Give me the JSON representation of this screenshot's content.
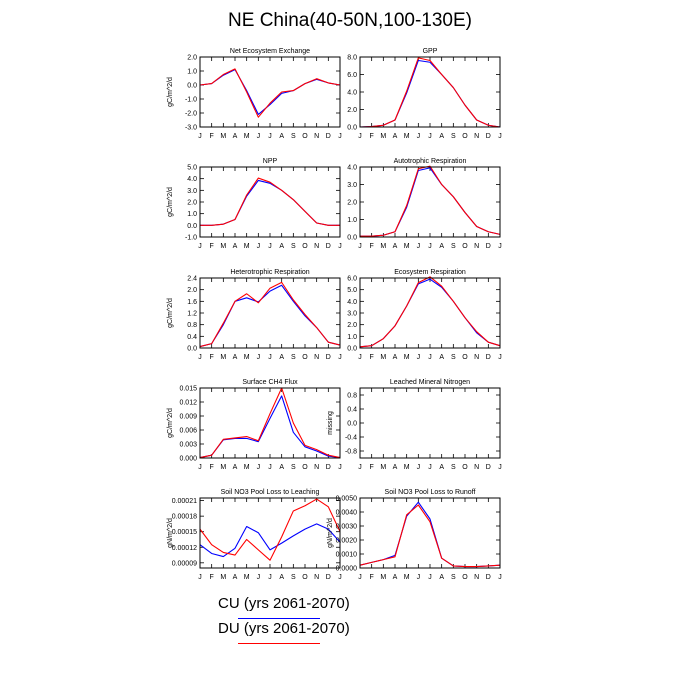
{
  "title": "NE China(40-50N,100-130E)",
  "months": [
    "J",
    "F",
    "M",
    "A",
    "M",
    "J",
    "J",
    "A",
    "S",
    "O",
    "N",
    "D",
    "J"
  ],
  "colors": {
    "CU": "#0000ff",
    "DU": "#ff0000"
  },
  "legend": [
    {
      "label": "CU (yrs 2061-2070)",
      "color": "#0000ff"
    },
    {
      "label": "DU (yrs 2061-2070)",
      "color": "#ff0000"
    }
  ],
  "chart_data": [
    {
      "type": "line",
      "title": "Net Ecosystem Exchange",
      "ylabel": "gC/m^2/d",
      "ylim": [
        -3.0,
        2.0
      ],
      "yticks": [
        "2.0",
        "1.0",
        "0.0",
        "-1.0",
        "-2.0",
        "-3.0"
      ],
      "ytick_values": [
        2.0,
        1.0,
        0.0,
        -1.0,
        -2.0,
        -3.0
      ],
      "series": [
        {
          "name": "CU (yrs 2061-2070)",
          "values": [
            0.0,
            0.1,
            0.7,
            1.1,
            -0.4,
            -2.1,
            -1.4,
            -0.6,
            -0.4,
            0.1,
            0.4,
            0.15,
            0.0
          ]
        },
        {
          "name": "DU (yrs 2061-2070)",
          "values": [
            0.0,
            0.1,
            0.75,
            1.15,
            -0.5,
            -2.3,
            -1.3,
            -0.5,
            -0.4,
            0.1,
            0.45,
            0.15,
            0.0
          ]
        }
      ]
    },
    {
      "type": "line",
      "title": "GPP",
      "ylabel": "",
      "ylim": [
        0.0,
        8.0
      ],
      "yticks": [
        "8.0",
        "6.0",
        "4.0",
        "2.0",
        "0.0"
      ],
      "ytick_values": [
        8.0,
        6.0,
        4.0,
        2.0,
        0.0
      ],
      "series": [
        {
          "name": "CU (yrs 2061-2070)",
          "values": [
            0.0,
            0.05,
            0.2,
            0.8,
            3.9,
            7.6,
            7.4,
            6.0,
            4.5,
            2.5,
            0.8,
            0.2,
            0.0
          ]
        },
        {
          "name": "DU (yrs 2061-2070)",
          "values": [
            0.0,
            0.05,
            0.2,
            0.8,
            4.1,
            7.9,
            7.6,
            6.0,
            4.5,
            2.5,
            0.8,
            0.2,
            0.0
          ]
        }
      ]
    },
    {
      "type": "line",
      "title": "NPP",
      "ylabel": "gC/m^2/d",
      "ylim": [
        -1.0,
        5.0
      ],
      "yticks": [
        "5.0",
        "4.0",
        "3.0",
        "2.0",
        "1.0",
        "0.0",
        "-1.0"
      ],
      "ytick_values": [
        5.0,
        4.0,
        3.0,
        2.0,
        1.0,
        0.0,
        -1.0
      ],
      "series": [
        {
          "name": "CU (yrs 2061-2070)",
          "values": [
            0.0,
            0.0,
            0.1,
            0.5,
            2.5,
            3.85,
            3.6,
            3.0,
            2.2,
            1.2,
            0.2,
            0.0,
            0.0
          ]
        },
        {
          "name": "DU (yrs 2061-2070)",
          "values": [
            0.0,
            0.0,
            0.1,
            0.5,
            2.6,
            4.05,
            3.7,
            3.0,
            2.2,
            1.2,
            0.2,
            0.0,
            0.0
          ]
        }
      ]
    },
    {
      "type": "line",
      "title": "Autotrophic Respiration",
      "ylabel": "",
      "ylim": [
        0.0,
        4.0
      ],
      "yticks": [
        "4.0",
        "3.0",
        "2.0",
        "1.0",
        "0.0"
      ],
      "ytick_values": [
        4.0,
        3.0,
        2.0,
        1.0,
        0.0
      ],
      "series": [
        {
          "name": "CU (yrs 2061-2070)",
          "values": [
            0.05,
            0.05,
            0.1,
            0.3,
            1.7,
            3.8,
            3.95,
            3.0,
            2.3,
            1.4,
            0.6,
            0.3,
            0.15
          ]
        },
        {
          "name": "DU (yrs 2061-2070)",
          "values": [
            0.05,
            0.05,
            0.1,
            0.3,
            1.8,
            3.9,
            4.05,
            3.0,
            2.3,
            1.4,
            0.6,
            0.3,
            0.15
          ]
        }
      ]
    },
    {
      "type": "line",
      "title": "Heterotrophic Respiration",
      "ylabel": "gC/m^2/d",
      "ylim": [
        0.0,
        2.4
      ],
      "yticks": [
        "2.4",
        "2.0",
        "1.6",
        "1.2",
        "0.8",
        "0.4",
        "0.0"
      ],
      "ytick_values": [
        2.4,
        2.0,
        1.6,
        1.2,
        0.8,
        0.4,
        0.0
      ],
      "series": [
        {
          "name": "CU (yrs 2061-2070)",
          "values": [
            0.05,
            0.15,
            0.8,
            1.6,
            1.72,
            1.58,
            1.95,
            2.15,
            1.6,
            1.1,
            0.7,
            0.2,
            0.1
          ]
        },
        {
          "name": "DU (yrs 2061-2070)",
          "values": [
            0.05,
            0.15,
            0.85,
            1.6,
            1.86,
            1.55,
            2.05,
            2.25,
            1.65,
            1.15,
            0.7,
            0.2,
            0.1
          ]
        }
      ]
    },
    {
      "type": "line",
      "title": "Ecosystem Respiration",
      "ylabel": "",
      "ylim": [
        0.0,
        6.0
      ],
      "yticks": [
        "6.0",
        "5.0",
        "4.0",
        "3.0",
        "2.0",
        "1.0",
        "0.0"
      ],
      "ytick_values": [
        6.0,
        5.0,
        4.0,
        3.0,
        2.0,
        1.0,
        0.0
      ],
      "series": [
        {
          "name": "CU (yrs 2061-2070)",
          "values": [
            0.1,
            0.2,
            0.8,
            1.9,
            3.6,
            5.5,
            5.9,
            5.2,
            4.0,
            2.6,
            1.3,
            0.5,
            0.2
          ]
        },
        {
          "name": "DU (yrs 2061-2070)",
          "values": [
            0.1,
            0.2,
            0.8,
            1.9,
            3.6,
            5.6,
            6.1,
            5.3,
            4.0,
            2.6,
            1.4,
            0.5,
            0.2
          ]
        }
      ]
    },
    {
      "type": "line",
      "title": "Surface CH4 Flux",
      "ylabel": "gC/m^2/d",
      "ylim": [
        0.0,
        0.015
      ],
      "yticks": [
        "0.015",
        "0.012",
        "0.009",
        "0.006",
        "0.003",
        "0.000"
      ],
      "ytick_values": [
        0.015,
        0.012,
        0.009,
        0.006,
        0.003,
        0.0
      ],
      "series": [
        {
          "name": "CU (yrs 2061-2070)",
          "values": [
            0.0001,
            0.0006,
            0.0039,
            0.0042,
            0.0042,
            0.0035,
            0.0085,
            0.0133,
            0.0055,
            0.0024,
            0.0015,
            0.0004,
            0.0001
          ]
        },
        {
          "name": "DU (yrs 2061-2070)",
          "values": [
            0.0001,
            0.0006,
            0.004,
            0.0043,
            0.0046,
            0.0037,
            0.0095,
            0.015,
            0.0075,
            0.0027,
            0.0018,
            0.0006,
            0.0001
          ]
        }
      ]
    },
    {
      "type": "line",
      "title": "Leached Mineral Nitrogen",
      "ylabel": "missing",
      "ylim": [
        -1.0,
        1.0
      ],
      "yticks": [
        "0.8",
        "0.4",
        "0.0",
        "-0.4",
        "-0.8"
      ],
      "ytick_values": [
        0.8,
        0.4,
        0.0,
        -0.4,
        -0.8
      ],
      "series": []
    },
    {
      "type": "line",
      "title": "Soil NO3 Pool Loss to Leaching",
      "ylabel": "gN/m^2/d",
      "ylim": [
        8e-05,
        0.000215
      ],
      "yticks": [
        "0.00021",
        "0.00018",
        "0.00015",
        "0.00012",
        "0.00009"
      ],
      "ytick_values": [
        0.00021,
        0.00018,
        0.00015,
        0.00012,
        9e-05
      ],
      "series": [
        {
          "name": "CU (yrs 2061-2070)",
          "values": [
            0.000125,
            0.000108,
            0.000102,
            0.000118,
            0.00016,
            0.000148,
            0.000115,
            0.000128,
            0.000142,
            0.000155,
            0.000165,
            0.000155,
            0.00013
          ]
        },
        {
          "name": "DU (yrs 2061-2070)",
          "values": [
            0.000155,
            0.000125,
            0.00011,
            0.000105,
            0.000135,
            0.000115,
            9.5e-05,
            0.00014,
            0.00019,
            0.0002,
            0.000213,
            0.000198,
            0.00015
          ]
        }
      ]
    },
    {
      "type": "line",
      "title": "Soil NO3 Pool Loss to Runoff",
      "ylabel": "gN/m^2/d",
      "ylim": [
        0.0,
        0.005
      ],
      "yticks": [
        "0.0050",
        "0.0040",
        "0.0030",
        "0.0020",
        "0.0010",
        "0.0000"
      ],
      "ytick_values": [
        0.005,
        0.004,
        0.003,
        0.002,
        0.001,
        0.0
      ],
      "series": [
        {
          "name": "CU (yrs 2061-2070)",
          "values": [
            0.0002,
            0.0004,
            0.0006,
            0.0009,
            0.0037,
            0.0047,
            0.0035,
            0.0007,
            0.00015,
            0.0001,
            0.0001,
            0.00015,
            0.0002
          ]
        },
        {
          "name": "DU (yrs 2061-2070)",
          "values": [
            0.0002,
            0.0004,
            0.0006,
            0.0008,
            0.0038,
            0.0045,
            0.0033,
            0.0007,
            0.00015,
            0.0001,
            0.0001,
            0.00015,
            0.0002
          ]
        }
      ]
    }
  ]
}
